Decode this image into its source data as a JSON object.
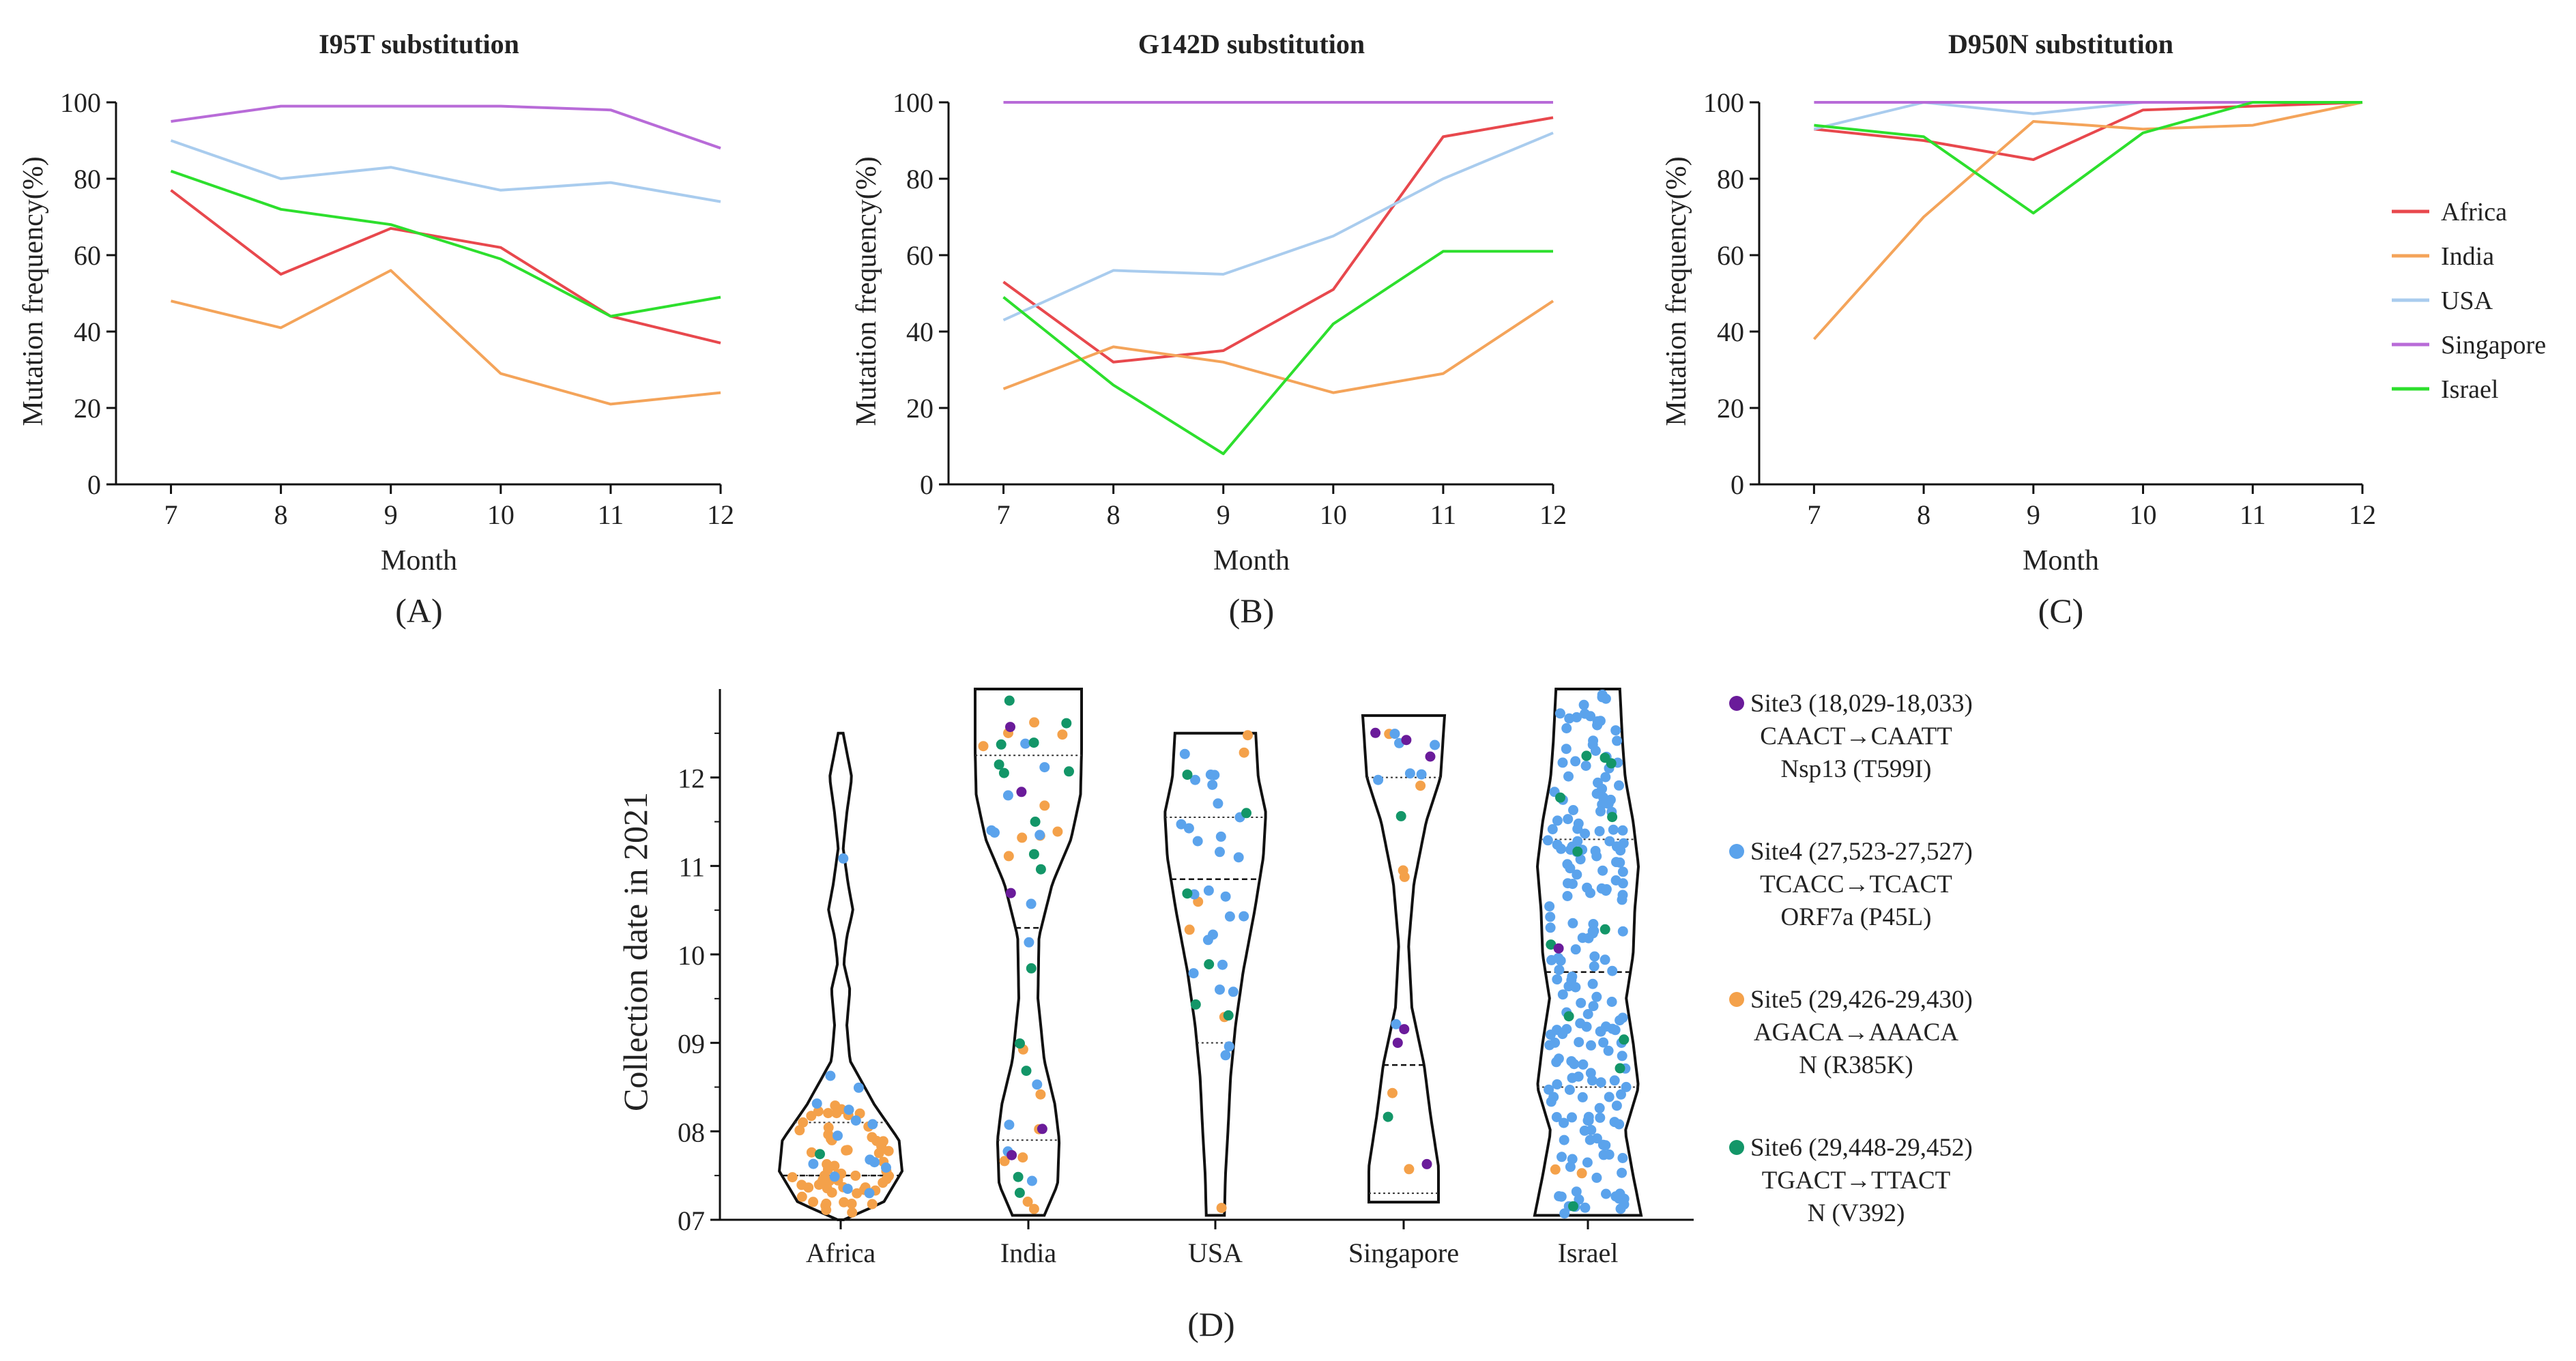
{
  "figure": {
    "panel_labels": [
      "(A)",
      "(B)",
      "(C)",
      "(D)"
    ]
  },
  "colors": {
    "Africa": "#e8484d",
    "India": "#f4a45a",
    "USA": "#a9ccee",
    "Singapore": "#b86bd8",
    "Israel": "#2ddf2d",
    "site3": "#6a1b9a",
    "site4": "#5ba3ec",
    "site5": "#f4a14a",
    "site6": "#139668"
  },
  "legend": {
    "entries": [
      "Africa",
      "India",
      "USA",
      "Singapore",
      "Israel"
    ]
  },
  "site_legend": [
    {
      "key": "site3",
      "lines": [
        "Site3 (18,029-18,033)",
        "CAACT→CAATT",
        "Nsp13 (T599I)"
      ]
    },
    {
      "key": "site4",
      "lines": [
        "Site4 (27,523-27,527)",
        "TCACC→TCACT",
        "ORF7a (P45L)"
      ]
    },
    {
      "key": "site5",
      "lines": [
        "Site5 (29,426-29,430)",
        "AGACA→AAACA",
        "N (R385K)"
      ]
    },
    {
      "key": "site6",
      "lines": [
        "Site6 (29,448-29,452)",
        "TGACT→TTACT",
        "N (V392)"
      ]
    }
  ],
  "chart_data": [
    {
      "type": "line",
      "title": "I95T substitution",
      "panel": "(A)",
      "xlabel": "Month",
      "ylabel": "Mutation frequency(%)",
      "x": [
        7,
        8,
        9,
        10,
        11,
        12
      ],
      "xlim": [
        6.5,
        12
      ],
      "ylim": [
        0,
        100
      ],
      "yticks": [
        0,
        20,
        40,
        60,
        80,
        100
      ],
      "series": [
        {
          "name": "Africa",
          "values": [
            77,
            55,
            67,
            62,
            44,
            37
          ]
        },
        {
          "name": "India",
          "values": [
            48,
            41,
            56,
            29,
            21,
            24
          ]
        },
        {
          "name": "USA",
          "values": [
            90,
            80,
            83,
            77,
            79,
            74
          ]
        },
        {
          "name": "Singapore",
          "values": [
            95,
            99,
            99,
            99,
            98,
            88
          ]
        },
        {
          "name": "Israel",
          "values": [
            82,
            72,
            68,
            59,
            44,
            49
          ]
        }
      ]
    },
    {
      "type": "line",
      "title": "G142D substitution",
      "panel": "(B)",
      "xlabel": "Month",
      "ylabel": "Mutation frequency(%)",
      "x": [
        7,
        8,
        9,
        10,
        11,
        12
      ],
      "xlim": [
        6.5,
        12
      ],
      "ylim": [
        0,
        100
      ],
      "yticks": [
        0,
        20,
        40,
        60,
        80,
        100
      ],
      "series": [
        {
          "name": "Africa",
          "values": [
            53,
            32,
            35,
            51,
            91,
            96
          ]
        },
        {
          "name": "India",
          "values": [
            25,
            36,
            32,
            24,
            29,
            48
          ]
        },
        {
          "name": "USA",
          "values": [
            43,
            56,
            55,
            65,
            80,
            92
          ]
        },
        {
          "name": "Singapore",
          "values": [
            100,
            100,
            100,
            100,
            100,
            100
          ]
        },
        {
          "name": "Israel",
          "values": [
            49,
            26,
            8,
            42,
            61,
            61
          ]
        }
      ]
    },
    {
      "type": "line",
      "title": "D950N substitution",
      "panel": "(C)",
      "xlabel": "Month",
      "ylabel": "Mutation frequency(%)",
      "x": [
        7,
        8,
        9,
        10,
        11,
        12
      ],
      "xlim": [
        6.5,
        12
      ],
      "ylim": [
        0,
        100
      ],
      "yticks": [
        0,
        20,
        40,
        60,
        80,
        100
      ],
      "series": [
        {
          "name": "Africa",
          "values": [
            93,
            90,
            85,
            98,
            99,
            100
          ]
        },
        {
          "name": "India",
          "values": [
            38,
            70,
            95,
            93,
            94,
            100
          ]
        },
        {
          "name": "USA",
          "values": [
            93,
            100,
            97,
            100,
            100,
            100
          ]
        },
        {
          "name": "Singapore",
          "values": [
            100,
            100,
            100,
            100,
            100,
            100
          ]
        },
        {
          "name": "Israel",
          "values": [
            94,
            91,
            71,
            92,
            100,
            100
          ]
        }
      ]
    },
    {
      "type": "scatter",
      "subtype": "violin",
      "panel": "(D)",
      "ylabel": "Collection date in 2021",
      "categories": [
        "Africa",
        "India",
        "USA",
        "Singapore",
        "Israel"
      ],
      "ylim": [
        7,
        13
      ],
      "yticks": [
        7,
        8,
        9,
        10,
        11,
        12
      ],
      "ytick_labels": [
        "07",
        "08",
        "09",
        "10",
        "11",
        "12"
      ],
      "groups": [
        {
          "name": "Africa",
          "median": 7.5,
          "quartiles": [
            7.5,
            8.1
          ],
          "width_profile": [
            [
              7.0,
              0.05
            ],
            [
              7.2,
              0.7
            ],
            [
              7.55,
              1.0
            ],
            [
              7.9,
              0.95
            ],
            [
              8.3,
              0.55
            ],
            [
              8.8,
              0.15
            ],
            [
              9.2,
              0.1
            ],
            [
              9.6,
              0.15
            ],
            [
              9.9,
              0.05
            ],
            [
              10.2,
              0.1
            ],
            [
              10.5,
              0.2
            ],
            [
              10.8,
              0.12
            ],
            [
              11.2,
              0.04
            ],
            [
              11.6,
              0.1
            ],
            [
              12.0,
              0.18
            ],
            [
              12.5,
              0.04
            ]
          ],
          "counts": {
            "site3": 0,
            "site4": 15,
            "site5": 60,
            "site6": 1
          }
        },
        {
          "name": "India",
          "median": 10.3,
          "quartiles": [
            7.9,
            12.25
          ],
          "width_profile": [
            [
              7.05,
              0.3
            ],
            [
              7.4,
              0.55
            ],
            [
              7.9,
              0.58
            ],
            [
              8.3,
              0.5
            ],
            [
              8.8,
              0.3
            ],
            [
              9.5,
              0.18
            ],
            [
              10.2,
              0.2
            ],
            [
              10.8,
              0.45
            ],
            [
              11.3,
              0.8
            ],
            [
              11.8,
              0.98
            ],
            [
              12.3,
              1.0
            ],
            [
              13.0,
              1.0
            ]
          ],
          "counts": {
            "site3": 5,
            "site4": 12,
            "site5": 16,
            "site6": 15
          }
        },
        {
          "name": "USA",
          "median": 10.85,
          "quartiles": [
            9.0,
            11.55
          ],
          "width_profile": [
            [
              7.05,
              0.18
            ],
            [
              7.5,
              0.2
            ],
            [
              8.0,
              0.25
            ],
            [
              8.6,
              0.3
            ],
            [
              9.2,
              0.4
            ],
            [
              9.8,
              0.55
            ],
            [
              10.5,
              0.78
            ],
            [
              11.1,
              0.95
            ],
            [
              11.6,
              1.0
            ],
            [
              12.0,
              0.85
            ],
            [
              12.5,
              0.8
            ]
          ],
          "counts": {
            "site3": 0,
            "site4": 26,
            "site5": 6,
            "site6": 6
          }
        },
        {
          "name": "Singapore",
          "median": 8.75,
          "quartiles": [
            7.3,
            12.0
          ],
          "width_profile": [
            [
              7.2,
              0.85
            ],
            [
              7.6,
              0.85
            ],
            [
              8.2,
              0.65
            ],
            [
              8.75,
              0.5
            ],
            [
              9.4,
              0.2
            ],
            [
              10.1,
              0.12
            ],
            [
              10.8,
              0.25
            ],
            [
              11.5,
              0.55
            ],
            [
              12.0,
              0.9
            ],
            [
              12.7,
              1.0
            ]
          ],
          "counts": {
            "site3": 6,
            "site4": 7,
            "site5": 6,
            "site6": 2
          }
        },
        {
          "name": "Israel",
          "median": 9.8,
          "quartiles": [
            8.5,
            11.3
          ],
          "width_profile": [
            [
              7.05,
              1.0
            ],
            [
              7.5,
              0.85
            ],
            [
              8.0,
              0.7
            ],
            [
              8.5,
              0.95
            ],
            [
              9.0,
              0.85
            ],
            [
              9.5,
              0.72
            ],
            [
              10.0,
              0.85
            ],
            [
              10.5,
              0.88
            ],
            [
              11.0,
              0.95
            ],
            [
              11.5,
              0.85
            ],
            [
              12.0,
              0.7
            ],
            [
              12.4,
              0.65
            ],
            [
              13.0,
              0.6
            ]
          ],
          "counts": {
            "site3": 1,
            "site4": 200,
            "site5": 2,
            "site6": 12
          }
        }
      ]
    }
  ]
}
